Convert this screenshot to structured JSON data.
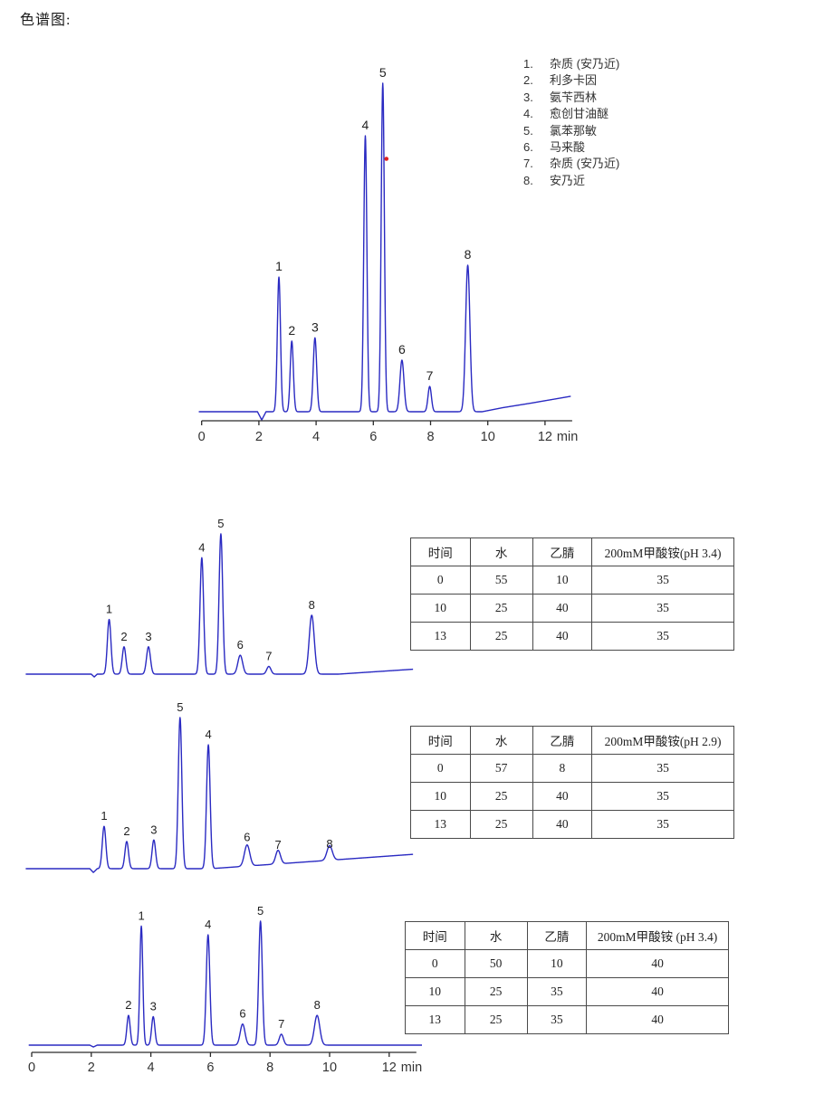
{
  "title": "色谱图:",
  "colors": {
    "trace": "#2a2ac2",
    "axis": "#2a2a2a",
    "text": "#222222",
    "tick_text": "#333333",
    "marker_red": "#e02020",
    "table_border": "#4a4a4a"
  },
  "legend": {
    "items": [
      {
        "num": "1.",
        "label": "杂质 (安乃近)"
      },
      {
        "num": "2.",
        "label": "利多卡因"
      },
      {
        "num": "3.",
        "label": "氨苄西林"
      },
      {
        "num": "4.",
        "label": "愈创甘油醚"
      },
      {
        "num": "5.",
        "label": "氯苯那敏"
      },
      {
        "num": "6.",
        "label": "马来酸"
      },
      {
        "num": "7.",
        "label": "杂质 (安乃近)"
      },
      {
        "num": "8.",
        "label": "安乃近"
      }
    ]
  },
  "chart_data": [
    {
      "id": "main-chromatogram",
      "type": "line",
      "xlabel_unit": "min",
      "xlim": [
        -0.1,
        12.9
      ],
      "axis": {
        "ticks": [
          0,
          2,
          4,
          6,
          8,
          10,
          12
        ],
        "unit": "min"
      },
      "peaks": [
        {
          "label": "1",
          "rt": 2.7,
          "height": 0.41,
          "sigma": 0.055
        },
        {
          "label": "2",
          "rt": 3.15,
          "height": 0.215,
          "sigma": 0.055
        },
        {
          "label": "3",
          "rt": 3.96,
          "height": 0.225,
          "sigma": 0.06
        },
        {
          "label": "4",
          "rt": 5.72,
          "height": 0.84,
          "sigma": 0.055
        },
        {
          "label": "5",
          "rt": 6.33,
          "height": 1.0,
          "sigma": 0.055
        },
        {
          "label": "6",
          "rt": 7.0,
          "height": 0.157,
          "sigma": 0.07
        },
        {
          "label": "7",
          "rt": 7.97,
          "height": 0.077,
          "sigma": 0.06
        },
        {
          "label": "8",
          "rt": 9.3,
          "height": 0.446,
          "sigma": 0.075
        }
      ],
      "marker": {
        "rt": 6.41,
        "height": 0.77
      },
      "drift": [
        [
          -0.1,
          0
        ],
        [
          1.95,
          0
        ],
        [
          2.1,
          -0.025
        ],
        [
          2.25,
          0
        ],
        [
          9.8,
          0
        ],
        [
          10.5,
          0.012
        ],
        [
          11.5,
          0.026
        ],
        [
          12.9,
          0.047
        ]
      ]
    },
    {
      "id": "sub-chromatogram-1",
      "type": "line",
      "xlim": [
        -0.2,
        12.8
      ],
      "axis": null,
      "peaks": [
        {
          "label": "1",
          "rt": 2.6,
          "height": 0.39,
          "sigma": 0.06
        },
        {
          "label": "2",
          "rt": 3.1,
          "height": 0.195,
          "sigma": 0.06
        },
        {
          "label": "3",
          "rt": 3.92,
          "height": 0.195,
          "sigma": 0.065
        },
        {
          "label": "4",
          "rt": 5.71,
          "height": 0.83,
          "sigma": 0.06
        },
        {
          "label": "5",
          "rt": 6.35,
          "height": 1.0,
          "sigma": 0.06
        },
        {
          "label": "6",
          "rt": 7.0,
          "height": 0.135,
          "sigma": 0.08
        },
        {
          "label": "7",
          "rt": 7.96,
          "height": 0.055,
          "sigma": 0.07
        },
        {
          "label": "8",
          "rt": 9.4,
          "height": 0.42,
          "sigma": 0.085
        }
      ],
      "drift": [
        [
          -0.2,
          0
        ],
        [
          2.0,
          0
        ],
        [
          2.1,
          -0.02
        ],
        [
          2.2,
          0
        ],
        [
          10.3,
          0
        ],
        [
          12.8,
          0.035
        ]
      ],
      "gradient_table": {
        "headers": [
          "时间",
          "水",
          "乙腈",
          "200mM甲酸铵(pH 3.4)"
        ],
        "rows": [
          [
            "0",
            "55",
            "10",
            "35"
          ],
          [
            "10",
            "25",
            "40",
            "35"
          ],
          [
            "13",
            "25",
            "40",
            "35"
          ]
        ]
      }
    },
    {
      "id": "sub-chromatogram-2",
      "type": "line",
      "xlim": [
        -0.2,
        12.8
      ],
      "axis": null,
      "peaks": [
        {
          "label": "1",
          "rt": 2.43,
          "height": 0.28,
          "sigma": 0.06
        },
        {
          "label": "2",
          "rt": 3.19,
          "height": 0.18,
          "sigma": 0.06
        },
        {
          "label": "3",
          "rt": 4.1,
          "height": 0.19,
          "sigma": 0.06
        },
        {
          "label": "5",
          "rt": 4.98,
          "height": 1.0,
          "sigma": 0.06
        },
        {
          "label": "4",
          "rt": 5.93,
          "height": 0.82,
          "sigma": 0.06
        },
        {
          "label": "6",
          "rt": 7.23,
          "height": 0.14,
          "sigma": 0.09
        },
        {
          "label": "7",
          "rt": 8.27,
          "height": 0.09,
          "sigma": 0.08
        },
        {
          "label": "8",
          "rt": 10.0,
          "height": 0.096,
          "sigma": 0.09
        }
      ],
      "drift": [
        [
          -0.2,
          0
        ],
        [
          1.95,
          0
        ],
        [
          2.07,
          -0.025
        ],
        [
          2.2,
          0
        ],
        [
          6.0,
          0
        ],
        [
          12.8,
          0.095
        ]
      ],
      "gradient_table": {
        "headers": [
          "时间",
          "水",
          "乙腈",
          "200mM甲酸铵(pH 2.9)"
        ],
        "rows": [
          [
            "0",
            "57",
            "8",
            "35"
          ],
          [
            "10",
            "25",
            "40",
            "35"
          ],
          [
            "13",
            "25",
            "40",
            "35"
          ]
        ]
      }
    },
    {
      "id": "sub-chromatogram-3",
      "type": "line",
      "xlim": [
        -0.1,
        13.1
      ],
      "axis": {
        "ticks": [
          0,
          2,
          4,
          6,
          8,
          10,
          12
        ],
        "unit": "min"
      },
      "peaks": [
        {
          "label": "2",
          "rt": 3.25,
          "height": 0.24,
          "sigma": 0.055
        },
        {
          "label": "1",
          "rt": 3.68,
          "height": 0.96,
          "sigma": 0.05
        },
        {
          "label": "3",
          "rt": 4.08,
          "height": 0.23,
          "sigma": 0.055
        },
        {
          "label": "4",
          "rt": 5.92,
          "height": 0.89,
          "sigma": 0.06
        },
        {
          "label": "6",
          "rt": 7.08,
          "height": 0.17,
          "sigma": 0.08
        },
        {
          "label": "5",
          "rt": 7.68,
          "height": 1.0,
          "sigma": 0.06
        },
        {
          "label": "7",
          "rt": 8.38,
          "height": 0.088,
          "sigma": 0.07
        },
        {
          "label": "8",
          "rt": 9.58,
          "height": 0.24,
          "sigma": 0.09
        }
      ],
      "drift": [
        [
          -0.1,
          0
        ],
        [
          1.95,
          0
        ],
        [
          2.07,
          -0.015
        ],
        [
          2.2,
          0
        ],
        [
          13.1,
          0
        ]
      ],
      "gradient_table": {
        "headers": [
          "时间",
          "水",
          "乙腈",
          "200mM甲酸铵 (pH 3.4)"
        ],
        "rows": [
          [
            "0",
            "50",
            "10",
            "40"
          ],
          [
            "10",
            "25",
            "35",
            "40"
          ],
          [
            "13",
            "25",
            "35",
            "40"
          ]
        ]
      }
    }
  ]
}
